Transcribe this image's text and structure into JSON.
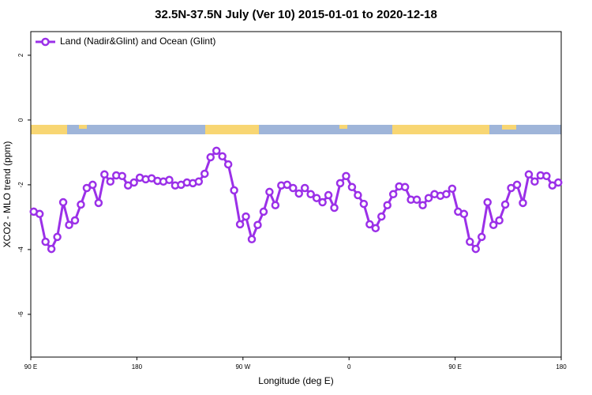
{
  "chart_data": {
    "type": "line",
    "title": "32.5N-37.5N July (Ver 10)   2015-01-01 to 2020-12-18",
    "xlabel": "Longitude (deg E)",
    "ylabel": "XCO2 - MLO trend (ppm)",
    "x": [
      92.5,
      97.5,
      102.5,
      107.5,
      112.5,
      117.5,
      122.5,
      127.5,
      132.5,
      137.5,
      142.5,
      147.5,
      152.5,
      157.5,
      162.5,
      167.5,
      172.5,
      177.5,
      182.5,
      187.5,
      192.5,
      197.5,
      202.5,
      207.5,
      212.5,
      217.5,
      222.5,
      227.5,
      232.5,
      237.5,
      242.5,
      247.5,
      252.5,
      257.5,
      262.5,
      267.5,
      272.5,
      277.5,
      282.5,
      287.5,
      292.5,
      297.5,
      302.5,
      307.5,
      312.5,
      317.5,
      322.5,
      327.5,
      332.5,
      337.5,
      342.5,
      347.5,
      352.5,
      357.5,
      362.5,
      367.5,
      372.5,
      377.5,
      382.5,
      387.5,
      392.5,
      397.5,
      402.5,
      407.5,
      412.5,
      417.5,
      422.5,
      427.5,
      432.5,
      437.5,
      442.5,
      447.5,
      452.5,
      457.5,
      462.5,
      467.5,
      472.5,
      477.5,
      482.5,
      487.5,
      492.5,
      497.5,
      502.5,
      507.5,
      512.5,
      517.5,
      522.5,
      527.5,
      532.5,
      537.5
    ],
    "series": [
      {
        "name": "Land (Nadir&Glint) and Ocean (Glint)",
        "color": "#9b30e8",
        "values": [
          -2.83,
          -2.9,
          -3.76,
          -3.98,
          -3.61,
          -2.54,
          -3.24,
          -3.1,
          -2.61,
          -2.1,
          -2.0,
          -2.56,
          -1.68,
          -1.9,
          -1.71,
          -1.73,
          -2.02,
          -1.93,
          -1.78,
          -1.83,
          -1.8,
          -1.88,
          -1.9,
          -1.85,
          -2.02,
          -2.0,
          -1.93,
          -1.95,
          -1.9,
          -1.66,
          -1.15,
          -0.95,
          -1.12,
          -1.37,
          -2.17,
          -3.22,
          -2.98,
          -3.68,
          -3.24,
          -2.83,
          -2.22,
          -2.63,
          -2.02,
          -2.0,
          -2.1,
          -2.27,
          -2.1,
          -2.29,
          -2.41,
          -2.54,
          -2.32,
          -2.71,
          -1.95,
          -1.73,
          -2.07,
          -2.32,
          -2.59,
          -3.22,
          -3.34,
          -2.98,
          -2.63,
          -2.29,
          -2.05,
          -2.07,
          -2.46,
          -2.46,
          -2.63,
          -2.41,
          -2.29,
          -2.34,
          -2.29,
          -2.12,
          -2.83,
          -2.9,
          -3.76,
          -3.98,
          -3.61,
          -2.54,
          -3.24,
          -3.1,
          -2.61,
          -2.1,
          -2.0,
          -2.56,
          -1.68,
          -1.9,
          -1.71,
          -1.73,
          -2.02,
          -1.93
        ]
      }
    ],
    "xlim": [
      90,
      540
    ],
    "xticks": [
      {
        "value": 90,
        "label": "90 E"
      },
      180,
      {
        "value": 270,
        "label": "90 W"
      },
      {
        "value": 360,
        "label": "0"
      },
      {
        "value": 450,
        "label": "90 E"
      },
      {
        "value": 540,
        "label": "180"
      }
    ],
    "ylim": [
      -7.32,
      2.73
    ],
    "yticks": [
      -6,
      -4,
      -2,
      0,
      2
    ],
    "legend": "top-left"
  }
}
